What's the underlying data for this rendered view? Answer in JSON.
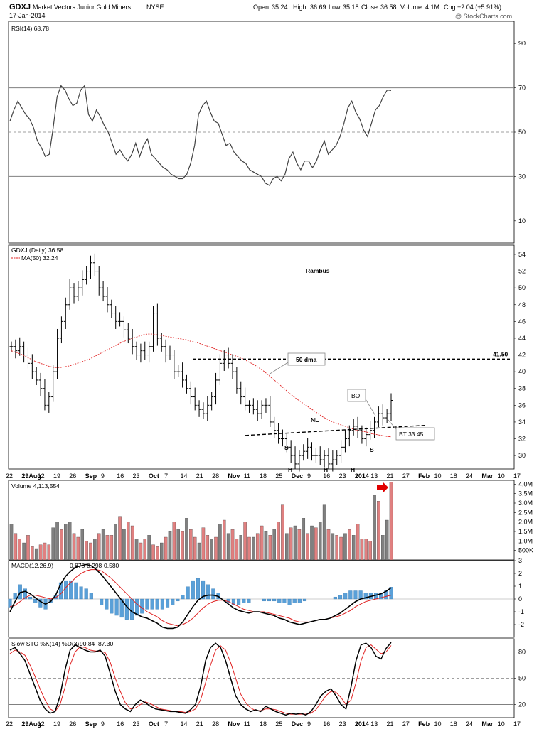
{
  "header": {
    "symbol": "GDXJ",
    "name": "Market Vectors Junior Gold Miners",
    "exchange": "NYSE",
    "date": "17-Jan-2014",
    "watermark": "@ StockCharts.com",
    "quote": {
      "open_label": "Open",
      "open": "35.24",
      "high_label": "High",
      "high": "36.69",
      "low_label": "Low",
      "low": "35.18",
      "close_label": "Close",
      "close": "36.58",
      "volume_label": "Volume",
      "volume": "4.1M",
      "chg_label": "Chg",
      "chg": "+2.04 (+5.91%)"
    }
  },
  "colors": {
    "up_volume": "#e08080",
    "down_volume": "#808080",
    "ma_line": "#e02020",
    "macd_hist": "#5aa0d8",
    "rsi_line": "#404040",
    "guide_line": "#808080",
    "annotation_blue": "#2020ff",
    "annotation_red": "#e00000"
  },
  "chart_data": [
    {
      "type": "line",
      "panel": "rsi",
      "legend": "RSI(14) 68.78",
      "y_ticks": [
        10,
        30,
        50,
        70,
        90
      ],
      "ylim": [
        0,
        100
      ],
      "reference_lines": [
        30,
        50,
        70
      ],
      "values": [
        55,
        60,
        64,
        61,
        58,
        56,
        52,
        46,
        43,
        39,
        40,
        52,
        66,
        71,
        69,
        65,
        62,
        63,
        69,
        71,
        58,
        55,
        60,
        57,
        53,
        50,
        45,
        40,
        42,
        39,
        37,
        40,
        45,
        39,
        44,
        47,
        40,
        38,
        36,
        34,
        33,
        31,
        30,
        29,
        29,
        31,
        36,
        44,
        58,
        62,
        64,
        59,
        55,
        54,
        49,
        44,
        45,
        41,
        39,
        37,
        36,
        33,
        32,
        31,
        30,
        27,
        26,
        29,
        30,
        28,
        31,
        38,
        41,
        36,
        33,
        37,
        37,
        34,
        37,
        42,
        46,
        40,
        42,
        44,
        48,
        54,
        61,
        64,
        59,
        56,
        51,
        48,
        54,
        60,
        62,
        66,
        69,
        68.78
      ]
    },
    {
      "type": "ohlc",
      "panel": "price",
      "legend": "GDXJ (Daily) 36.58",
      "ma_legend": "MA(50) 32.24",
      "annotation_title": "Rambus",
      "y_ticks": [
        30,
        32,
        34,
        36,
        38,
        40,
        42,
        44,
        46,
        48,
        50,
        52,
        54
      ],
      "ylim": [
        28.4,
        55.1
      ],
      "x_ticks": [
        "22",
        "29Aug",
        "12",
        "19",
        "26",
        "Sep",
        "9",
        "16",
        "23",
        "Oct",
        "7",
        "14",
        "21",
        "28",
        "Nov",
        "11",
        "18",
        "25",
        "Dec",
        "9",
        "16",
        "23",
        "2014",
        "13",
        "21",
        "27",
        "Feb",
        "10",
        "18",
        "24",
        "Mar",
        "10",
        "17"
      ],
      "close": [
        43,
        42.5,
        43,
        42,
        41,
        40,
        39,
        38,
        36,
        37,
        40,
        44,
        46,
        48,
        50,
        49,
        50,
        51,
        52,
        53,
        52,
        50,
        49,
        48,
        47,
        46,
        46,
        45,
        44,
        43,
        42,
        42.5,
        42,
        43,
        47,
        44,
        43,
        42,
        42,
        40,
        40,
        39,
        38,
        37,
        36,
        35.5,
        35,
        36,
        37,
        39,
        41,
        42,
        41,
        40,
        38,
        37,
        36,
        36,
        35.5,
        35,
        36,
        36,
        34,
        33,
        32,
        32,
        31,
        30,
        29,
        30,
        30.5,
        31,
        30,
        30,
        29.5,
        30,
        29,
        29.5,
        30,
        31,
        32,
        33,
        33.5,
        33,
        32,
        32.5,
        33,
        34,
        35,
        34.5,
        35,
        36.58
      ],
      "ma50": [
        42.5,
        42.3,
        42.1,
        41.8,
        41.5,
        41.2,
        41,
        40.8,
        40.6,
        40.5,
        40.5,
        40.6,
        40.7,
        40.9,
        41.1,
        41.3,
        41.5,
        41.8,
        42.1,
        42.4,
        42.7,
        43,
        43.3,
        43.6,
        43.8,
        44,
        44.2,
        44.4,
        44.5,
        44.5,
        44.4,
        44.3,
        44.2,
        44.1,
        44,
        43.9,
        43.8,
        43.6,
        43.5,
        43.3,
        43.1,
        42.9,
        42.7,
        42.5,
        42.3,
        42.1,
        41.9,
        41.7,
        41.4,
        41.1,
        40.8,
        40.4,
        40,
        39.5,
        39,
        38.5,
        38,
        37.5,
        37,
        36.6,
        36.2,
        35.8,
        35.4,
        35,
        34.6,
        34.3,
        34,
        33.8,
        33.6,
        33.4,
        33.2,
        33,
        32.9,
        32.8,
        32.6,
        32.5,
        32.4,
        32.3,
        32.24
      ]
    },
    {
      "type": "bar",
      "panel": "volume",
      "legend": "Volume 4,113,554",
      "y_tick_labels": [
        "500K",
        "1.0M",
        "1.5M",
        "2.0M",
        "2.5M",
        "3.0M",
        "3.5M",
        "4.0M"
      ],
      "y_tick_values": [
        0.5,
        1.0,
        1.5,
        2.0,
        2.5,
        3.0,
        3.5,
        4.0
      ],
      "ylim": [
        0,
        4.2
      ],
      "values": [
        1.9,
        1.4,
        1.1,
        0.9,
        1.3,
        0.7,
        0.6,
        0.8,
        0.9,
        0.8,
        1.7,
        2.0,
        1.6,
        1.9,
        2.0,
        1.4,
        1.2,
        1.6,
        1.0,
        0.9,
        1.1,
        1.4,
        1.6,
        1.3,
        1.3,
        1.9,
        2.3,
        1.6,
        2.0,
        1.8,
        1.1,
        0.9,
        1.1,
        1.3,
        0.8,
        0.7,
        0.9,
        1.2,
        1.5,
        2.0,
        1.6,
        1.5,
        2.2,
        1.6,
        1.2,
        0.9,
        1.7,
        1.3,
        1.1,
        1.2,
        1.9,
        2.1,
        1.4,
        1.6,
        1.1,
        1.3,
        2.0,
        1.2,
        1.2,
        1.4,
        1.8,
        1.5,
        1.3,
        1.6,
        2.0,
        2.9,
        1.4,
        1.7,
        1.8,
        1.6,
        2.2,
        1.4,
        1.8,
        1.7,
        2.0,
        2.9,
        1.6,
        1.4,
        1.3,
        1.2,
        1.4,
        1.6,
        1.3,
        1.9,
        1.1,
        1.1,
        1.0,
        3.4,
        3.1,
        1.3,
        2.1,
        4.11
      ],
      "up": [
        false,
        true,
        true,
        false,
        true,
        true,
        false,
        true,
        true,
        true,
        false,
        false,
        true,
        false,
        false,
        true,
        true,
        false,
        true,
        true,
        false,
        true,
        false,
        true,
        true,
        false,
        true,
        false,
        true,
        true,
        false,
        true,
        true,
        false,
        true,
        true,
        false,
        true,
        false,
        true,
        false,
        true,
        false,
        true,
        true,
        false,
        true,
        true,
        false,
        true,
        false,
        true,
        false,
        true,
        true,
        false,
        true,
        true,
        false,
        true,
        true,
        false,
        true,
        false,
        true,
        true,
        false,
        true,
        false,
        true,
        false,
        true,
        false,
        true,
        false,
        false,
        true,
        false,
        true,
        true,
        false,
        true,
        false,
        true,
        true,
        true,
        true,
        false,
        true,
        false,
        false,
        true
      ]
    },
    {
      "type": "line",
      "panel": "macd",
      "legend": "MACD(12,26,9)",
      "macd_value": "0.878",
      "signal_value": "0.298",
      "hist_value": "0.580",
      "y_ticks": [
        -2,
        -1,
        0,
        1,
        2,
        3
      ],
      "ylim": [
        -3,
        3
      ],
      "macd": [
        -1,
        -0.2,
        0.5,
        0.6,
        0.4,
        0.1,
        -0.2,
        -0.4,
        -0.2,
        0.3,
        1.2,
        1.8,
        2.2,
        2.5,
        2.6,
        2.7,
        2.6,
        2.3,
        1.9,
        1.4,
        0.9,
        0.4,
        -0.1,
        -0.6,
        -1.0,
        -1.2,
        -1.4,
        -1.5,
        -1.7,
        -1.9,
        -2.2,
        -2.3,
        -2.3,
        -2.2,
        -1.8,
        -1.2,
        -0.6,
        -0.1,
        0.2,
        0.3,
        0.3,
        0.2,
        -0.1,
        -0.4,
        -0.7,
        -0.9,
        -1.0,
        -1.1,
        -1.0,
        -1.0,
        -1.1,
        -1.2,
        -1.3,
        -1.5,
        -1.6,
        -1.8,
        -1.9,
        -2.0,
        -1.9,
        -1.8,
        -1.7,
        -1.6,
        -1.6,
        -1.5,
        -1.3,
        -1.1,
        -0.8,
        -0.5,
        -0.2,
        0.0,
        0.1,
        0.2,
        0.3,
        0.4,
        0.6,
        0.878
      ],
      "signal": [
        -0.6,
        -0.5,
        -0.2,
        0.1,
        0.3,
        0.3,
        0.2,
        0.1,
        0.0,
        0.1,
        0.4,
        0.9,
        1.3,
        1.7,
        2.0,
        2.2,
        2.3,
        2.3,
        2.2,
        1.9,
        1.6,
        1.2,
        0.8,
        0.4,
        0.0,
        -0.4,
        -0.7,
        -1.0,
        -1.2,
        -1.4,
        -1.7,
        -1.9,
        -2.0,
        -2.1,
        -2.0,
        -1.8,
        -1.5,
        -1.1,
        -0.7,
        -0.4,
        -0.2,
        -0.1,
        -0.1,
        -0.2,
        -0.4,
        -0.6,
        -0.8,
        -0.9,
        -1.0,
        -1.0,
        -1.0,
        -1.1,
        -1.2,
        -1.3,
        -1.4,
        -1.5,
        -1.7,
        -1.8,
        -1.8,
        -1.8,
        -1.7,
        -1.6,
        -1.6,
        -1.5,
        -1.4,
        -1.3,
        -1.1,
        -0.9,
        -0.6,
        -0.4,
        -0.2,
        -0.1,
        0.0,
        0.1,
        0.2,
        0.298
      ]
    },
    {
      "type": "line",
      "panel": "stochastic",
      "legend": "Slow STO %K(14) %D(3)",
      "k_value": "90.84",
      "d_value": "87.30",
      "y_ticks": [
        20,
        50,
        80
      ],
      "ylim": [
        5,
        95
      ],
      "reference_lines": [
        20,
        50,
        80
      ],
      "k": [
        82,
        85,
        78,
        70,
        55,
        40,
        25,
        15,
        10,
        12,
        30,
        60,
        82,
        88,
        85,
        82,
        80,
        80,
        82,
        75,
        55,
        35,
        20,
        15,
        12,
        20,
        25,
        22,
        18,
        15,
        14,
        13,
        12,
        12,
        11,
        10,
        14,
        20,
        40,
        70,
        85,
        90,
        85,
        70,
        50,
        30,
        20,
        15,
        12,
        14,
        12,
        18,
        15,
        12,
        10,
        8,
        10,
        9,
        10,
        8,
        12,
        20,
        30,
        35,
        38,
        30,
        20,
        15,
        40,
        70,
        88,
        90,
        85,
        75,
        72,
        84,
        90.84
      ],
      "d": [
        78,
        82,
        80,
        76,
        65,
        52,
        38,
        25,
        15,
        12,
        20,
        40,
        65,
        80,
        86,
        85,
        82,
        81,
        81,
        79,
        68,
        50,
        35,
        22,
        15,
        16,
        20,
        23,
        21,
        18,
        15,
        14,
        13,
        12,
        12,
        11,
        12,
        15,
        25,
        45,
        65,
        82,
        87,
        82,
        68,
        50,
        32,
        22,
        16,
        13,
        13,
        15,
        15,
        14,
        12,
        10,
        9,
        9,
        9,
        9,
        10,
        14,
        22,
        30,
        35,
        34,
        28,
        20,
        25,
        45,
        70,
        85,
        88,
        83,
        78,
        80,
        87.3
      ]
    }
  ],
  "annotations": {
    "neckline_label": "NL",
    "ma_callout": "50 dma",
    "level_label": "41.50",
    "bo_label": "BO",
    "bt_label": "BT 33.45",
    "hs_labels": [
      "S",
      "H",
      "H",
      "H",
      "S"
    ]
  },
  "volume_panel": {
    "arrow": "red-arrow-icon"
  }
}
